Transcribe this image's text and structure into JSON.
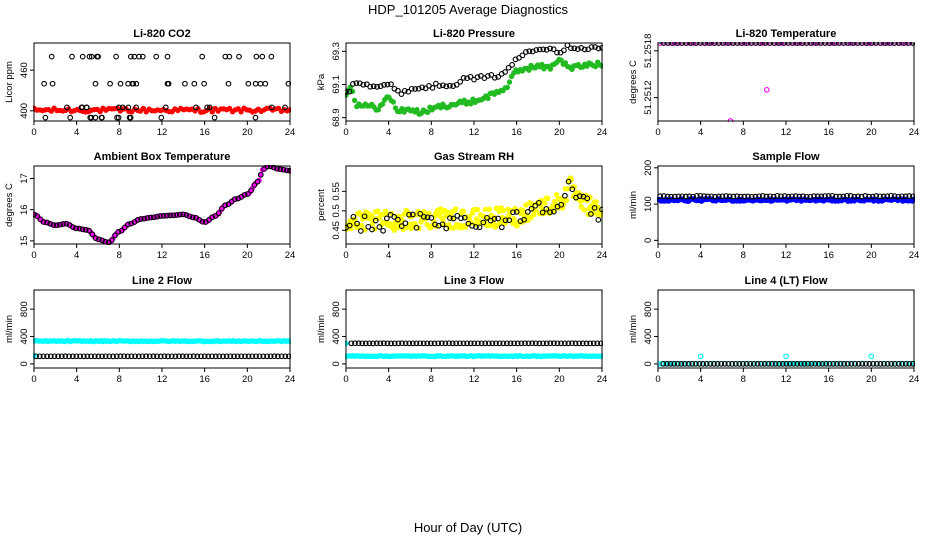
{
  "figure": {
    "title": "HDP_101205  Average Diagnostics",
    "xlabel": "Hour of Day (UTC)"
  },
  "colors": {
    "black": "#000000",
    "red": "#ff0000",
    "green": "#22bb22",
    "magenta": "#ff00ff",
    "yellow": "#ffff00",
    "blue": "#0000ff",
    "cyan": "#00ffff"
  },
  "chart_data": [
    {
      "type": "scatter",
      "title": "Li-820 CO2",
      "ylabel": "Licor ppm",
      "xlim": [
        0,
        24
      ],
      "ylim": [
        385,
        500
      ],
      "x_ticks": [
        "0",
        "4",
        "8",
        "12",
        "16",
        "20",
        "24"
      ],
      "y_ticks": [
        400,
        460
      ],
      "grid": false,
      "series": [
        {
          "color": "red",
          "marker": "filled",
          "pattern": {
            "type": "band",
            "x0": 0,
            "x1": 24,
            "ymin": 398,
            "ymax": 404,
            "n": 90
          }
        },
        {
          "color": "black",
          "marker": "open",
          "pattern": {
            "type": "levels",
            "x0": 0.4,
            "x1": 23.9,
            "levels": [
              390,
              405,
              440,
              480
            ],
            "n": 70
          }
        }
      ]
    },
    {
      "type": "scatter",
      "title": "Li-820 Pressure",
      "ylabel": "kPa",
      "xlim": [
        0,
        24
      ],
      "ylim": [
        68.88,
        69.35
      ],
      "x_ticks": [
        "0",
        "4",
        "8",
        "12",
        "16",
        "20",
        "24"
      ],
      "y_ticks": [
        68.9,
        69.1,
        69.3
      ],
      "grid": false,
      "series": [
        {
          "color": "green",
          "marker": "filled",
          "pattern": {
            "type": "curve",
            "noise": 0.015,
            "n": 120,
            "knots": [
              [
                0,
                69.05
              ],
              [
                0.5,
                69.08
              ],
              [
                1,
                68.98
              ],
              [
                2,
                68.97
              ],
              [
                3,
                68.96
              ],
              [
                4,
                69.02
              ],
              [
                5,
                68.94
              ],
              [
                6,
                68.95
              ],
              [
                7,
                68.93
              ],
              [
                8,
                68.95
              ],
              [
                9,
                68.97
              ],
              [
                10,
                68.98
              ],
              [
                11,
                68.99
              ],
              [
                12,
                69.0
              ],
              [
                13,
                69.02
              ],
              [
                14,
                69.05
              ],
              [
                15,
                69.08
              ],
              [
                16,
                69.18
              ],
              [
                17,
                69.2
              ],
              [
                18,
                69.21
              ],
              [
                19,
                69.2
              ],
              [
                20,
                69.25
              ],
              [
                21,
                69.2
              ],
              [
                22,
                69.21
              ],
              [
                23,
                69.22
              ],
              [
                24,
                69.22
              ]
            ]
          }
        },
        {
          "color": "black",
          "marker": "open",
          "pattern": {
            "type": "curve",
            "noise": 0.012,
            "n": 75,
            "knots": [
              [
                0,
                69.05
              ],
              [
                1,
                69.12
              ],
              [
                2,
                69.1
              ],
              [
                3,
                69.09
              ],
              [
                4,
                69.1
              ],
              [
                5,
                69.05
              ],
              [
                6,
                69.07
              ],
              [
                7,
                69.08
              ],
              [
                8,
                69.09
              ],
              [
                9,
                69.1
              ],
              [
                10,
                69.1
              ],
              [
                11,
                69.13
              ],
              [
                12,
                69.14
              ],
              [
                13,
                69.14
              ],
              [
                14,
                69.15
              ],
              [
                15,
                69.18
              ],
              [
                16,
                69.25
              ],
              [
                17,
                69.3
              ],
              [
                18,
                69.32
              ],
              [
                19,
                69.32
              ],
              [
                20,
                69.3
              ],
              [
                21,
                69.33
              ],
              [
                22,
                69.32
              ],
              [
                23,
                69.32
              ],
              [
                24,
                69.32
              ]
            ]
          }
        }
      ]
    },
    {
      "type": "scatter",
      "title": "Li-820 Temperature",
      "ylabel": "degrees C",
      "xlim": [
        0,
        24
      ],
      "ylim": [
        51.2509,
        51.2519
      ],
      "x_ticks": [
        "0",
        "4",
        "8",
        "12",
        "16",
        "20",
        "24"
      ],
      "y_ticks": [
        51.2512,
        51.2518
      ],
      "grid": false,
      "series": [
        {
          "color": "magenta",
          "marker": "open",
          "pattern": {
            "type": "band",
            "x0": 0.2,
            "x1": 23.9,
            "ymin": 51.2519,
            "ymax": 51.2519,
            "n": 70
          },
          "points": [
            [
              6.8,
              51.2509
            ],
            [
              10.2,
              51.2513
            ]
          ]
        },
        {
          "color": "black",
          "marker": "open",
          "pattern": {
            "type": "band",
            "x0": 0.5,
            "x1": 23.9,
            "ymin": 51.2519,
            "ymax": 51.2519,
            "n": 55
          }
        }
      ]
    },
    {
      "type": "scatter",
      "title": "Ambient Box Temperature",
      "ylabel": "degrees C",
      "xlim": [
        0,
        24
      ],
      "ylim": [
        14.9,
        17.4
      ],
      "x_ticks": [
        "0",
        "4",
        "8",
        "12",
        "16",
        "20",
        "24"
      ],
      "y_ticks": [
        15.0,
        16.0,
        17.0
      ],
      "grid": false,
      "series": [
        {
          "color": "magenta",
          "marker": "filled",
          "pattern": {
            "type": "curve",
            "noise": 0.0,
            "n": 150,
            "knots": [
              [
                0,
                15.85
              ],
              [
                1,
                15.6
              ],
              [
                2,
                15.5
              ],
              [
                3,
                15.55
              ],
              [
                4,
                15.4
              ],
              [
                5,
                15.35
              ],
              [
                6,
                15.05
              ],
              [
                7,
                14.95
              ],
              [
                8,
                15.3
              ],
              [
                9,
                15.55
              ],
              [
                10,
                15.7
              ],
              [
                11,
                15.75
              ],
              [
                12,
                15.8
              ],
              [
                13,
                15.82
              ],
              [
                14,
                15.85
              ],
              [
                15,
                15.75
              ],
              [
                16,
                15.6
              ],
              [
                17,
                15.8
              ],
              [
                18,
                16.15
              ],
              [
                19,
                16.35
              ],
              [
                20,
                16.5
              ],
              [
                21,
                16.9
              ],
              [
                21.5,
                17.3
              ],
              [
                22,
                17.4
              ],
              [
                23,
                17.3
              ],
              [
                24,
                17.25
              ]
            ]
          }
        },
        {
          "color": "black",
          "marker": "open",
          "pattern": {
            "type": "curve",
            "noise": 0.0,
            "n": 80,
            "knots": [
              [
                0,
                15.85
              ],
              [
                1,
                15.6
              ],
              [
                2,
                15.5
              ],
              [
                3,
                15.55
              ],
              [
                4,
                15.4
              ],
              [
                5,
                15.35
              ],
              [
                6,
                15.05
              ],
              [
                7,
                14.95
              ],
              [
                8,
                15.3
              ],
              [
                9,
                15.55
              ],
              [
                10,
                15.7
              ],
              [
                11,
                15.75
              ],
              [
                12,
                15.8
              ],
              [
                13,
                15.82
              ],
              [
                14,
                15.85
              ],
              [
                15,
                15.75
              ],
              [
                16,
                15.6
              ],
              [
                17,
                15.8
              ],
              [
                18,
                16.15
              ],
              [
                19,
                16.35
              ],
              [
                20,
                16.5
              ],
              [
                21,
                16.9
              ],
              [
                21.5,
                17.3
              ],
              [
                22,
                17.4
              ],
              [
                23,
                17.3
              ],
              [
                24,
                17.25
              ]
            ]
          }
        }
      ]
    },
    {
      "type": "scatter",
      "title": "Gas Stream RH",
      "ylabel": "percent",
      "xlim": [
        0,
        24
      ],
      "ylim": [
        0.415,
        0.615
      ],
      "x_ticks": [
        "0",
        "4",
        "8",
        "12",
        "16",
        "20",
        "24"
      ],
      "y_ticks": [
        0.45,
        0.5,
        0.55
      ],
      "grid": false,
      "series": [
        {
          "color": "yellow",
          "marker": "filled",
          "pattern": {
            "type": "curve",
            "noise": 0.025,
            "n": 260,
            "knots": [
              [
                0,
                0.47
              ],
              [
                4,
                0.475
              ],
              [
                8,
                0.48
              ],
              [
                12,
                0.48
              ],
              [
                16,
                0.485
              ],
              [
                17,
                0.5
              ],
              [
                18,
                0.51
              ],
              [
                20,
                0.52
              ],
              [
                21,
                0.56
              ],
              [
                22,
                0.52
              ],
              [
                24,
                0.5
              ]
            ]
          }
        },
        {
          "color": "black",
          "marker": "open",
          "pattern": {
            "type": "curve",
            "noise": 0.022,
            "n": 70,
            "knots": [
              [
                0,
                0.465
              ],
              [
                4,
                0.47
              ],
              [
                8,
                0.475
              ],
              [
                12,
                0.475
              ],
              [
                16,
                0.48
              ],
              [
                17,
                0.5
              ],
              [
                18,
                0.515
              ],
              [
                20,
                0.52
              ],
              [
                21,
                0.56
              ],
              [
                22,
                0.52
              ],
              [
                24,
                0.49
              ]
            ]
          }
        }
      ]
    },
    {
      "type": "scatter",
      "title": "Sample Flow",
      "ylabel": "ml/min",
      "xlim": [
        0,
        24
      ],
      "ylim": [
        -10,
        205
      ],
      "x_ticks": [
        "0",
        "4",
        "8",
        "12",
        "16",
        "20",
        "24"
      ],
      "y_ticks": [
        0,
        100,
        200
      ],
      "grid": false,
      "series": [
        {
          "color": "blue",
          "marker": "filled",
          "pattern": {
            "type": "band",
            "x0": 0,
            "x1": 24,
            "ymin": 108,
            "ymax": 114,
            "n": 160
          }
        },
        {
          "color": "black",
          "marker": "open",
          "pattern": {
            "type": "band",
            "x0": 0.2,
            "x1": 23.9,
            "ymin": 120,
            "ymax": 123,
            "n": 70
          }
        }
      ]
    },
    {
      "type": "scatter",
      "title": "Line 2 Flow",
      "ylabel": "ml/min",
      "xlim": [
        0,
        24
      ],
      "ylim": [
        -60,
        1080
      ],
      "x_ticks": [
        "0",
        "4",
        "8",
        "12",
        "16",
        "20",
        "24"
      ],
      "y_ticks": [
        0,
        400,
        800
      ],
      "grid": false,
      "series": [
        {
          "color": "cyan",
          "marker": "filled",
          "pattern": {
            "type": "band",
            "x0": 0,
            "x1": 24,
            "ymin": 325,
            "ymax": 340,
            "n": 150
          },
          "points": [
            [
              0,
              120
            ]
          ]
        },
        {
          "color": "black",
          "marker": "open",
          "pattern": {
            "type": "band",
            "x0": 0.2,
            "x1": 23.9,
            "ymin": 110,
            "ymax": 112,
            "n": 70
          }
        }
      ]
    },
    {
      "type": "scatter",
      "title": "Line 3 Flow",
      "ylabel": "ml/min",
      "xlim": [
        0,
        24
      ],
      "ylim": [
        -60,
        1080
      ],
      "x_ticks": [
        "0",
        "4",
        "8",
        "12",
        "16",
        "20",
        "24"
      ],
      "y_ticks": [
        0,
        400,
        800
      ],
      "grid": false,
      "series": [
        {
          "color": "cyan",
          "marker": "filled",
          "pattern": {
            "type": "band",
            "x0": 0,
            "x1": 24,
            "ymin": 108,
            "ymax": 120,
            "n": 150
          },
          "points": [
            [
              0,
              300
            ]
          ]
        },
        {
          "color": "black",
          "marker": "open",
          "pattern": {
            "type": "band",
            "x0": 0.5,
            "x1": 23.9,
            "ymin": 300,
            "ymax": 302,
            "n": 70
          }
        }
      ]
    },
    {
      "type": "scatter",
      "title": "Line 4 (LT) Flow",
      "ylabel": "ml/min",
      "xlim": [
        0,
        24
      ],
      "ylim": [
        -60,
        1080
      ],
      "x_ticks": [
        "0",
        "4",
        "8",
        "12",
        "16",
        "20",
        "24"
      ],
      "y_ticks": [
        0,
        400,
        800
      ],
      "grid": false,
      "series": [
        {
          "color": "cyan",
          "marker": "open",
          "pattern": {
            "type": "band",
            "x0": 0,
            "x1": 24,
            "ymin": 0,
            "ymax": 4,
            "n": 70
          },
          "points": [
            [
              4,
              110
            ],
            [
              12,
              110
            ],
            [
              20,
              110
            ]
          ]
        },
        {
          "color": "black",
          "marker": "open",
          "pattern": {
            "type": "band",
            "x0": 0.5,
            "x1": 23.9,
            "ymin": 0,
            "ymax": 2,
            "n": 70
          }
        }
      ]
    }
  ]
}
